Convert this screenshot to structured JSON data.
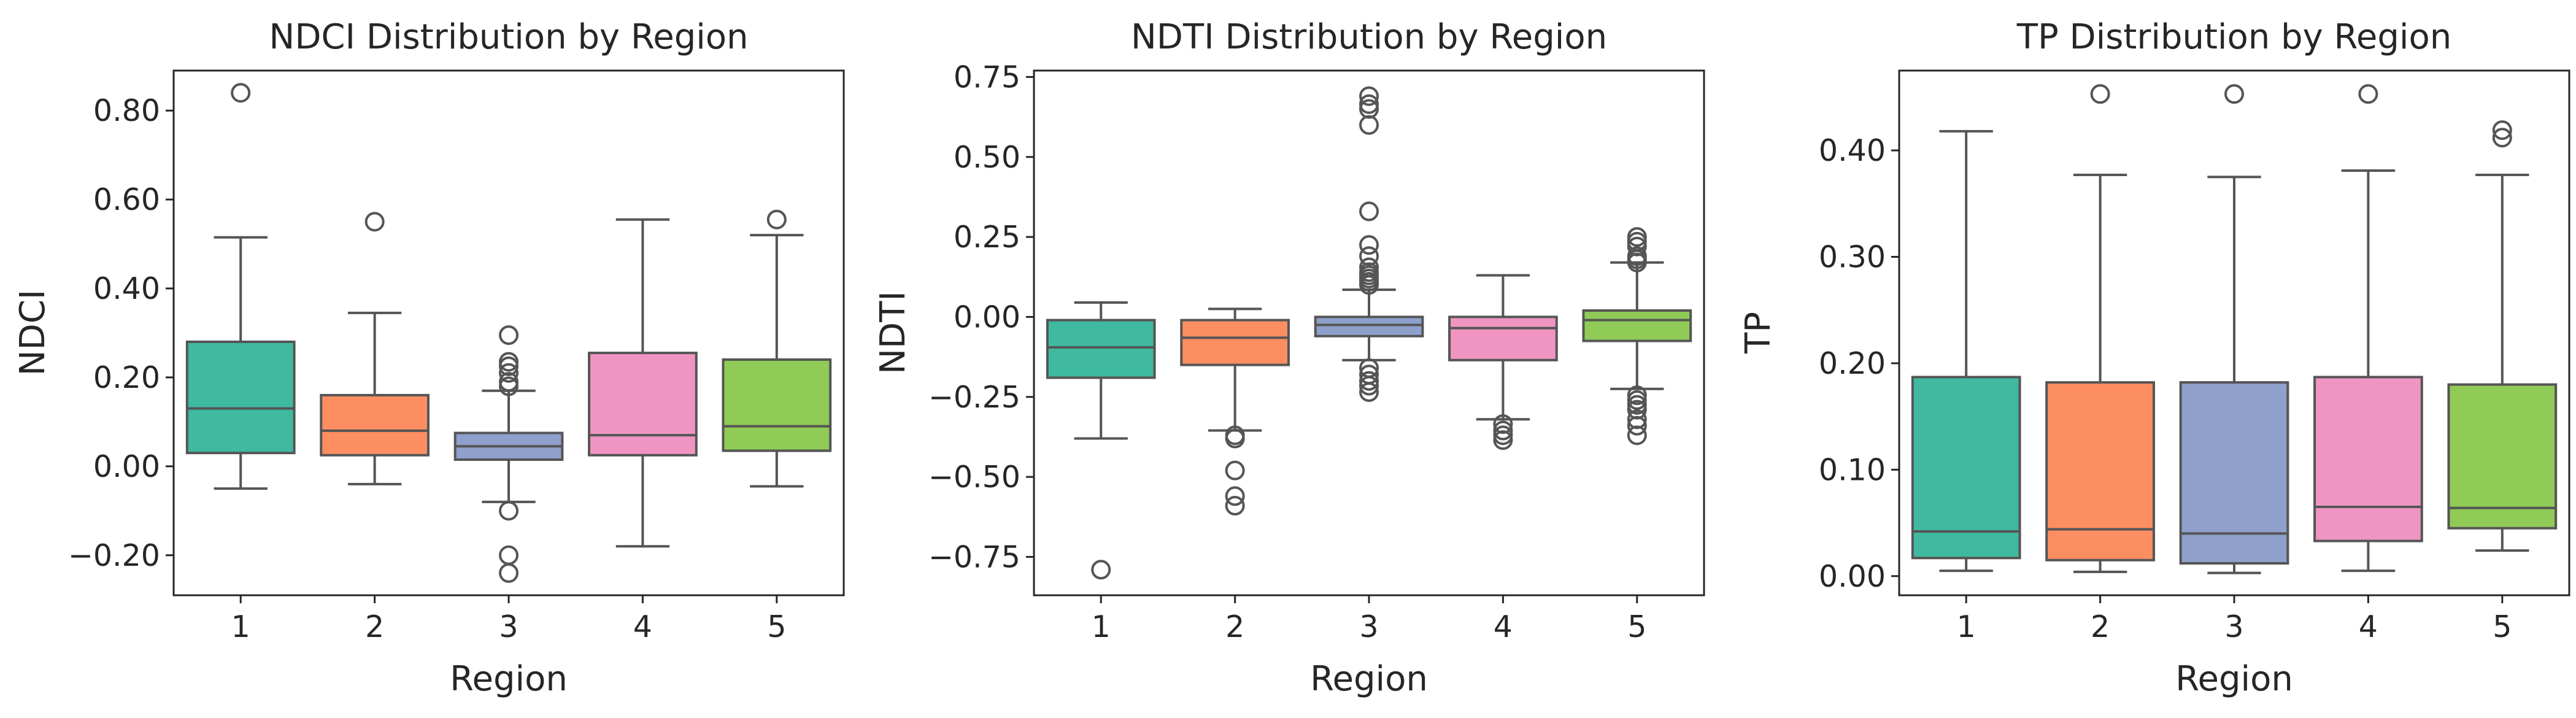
{
  "chart_data": [
    {
      "type": "boxplot",
      "title": "NDCI Distribution by Region",
      "xlabel": "Region",
      "ylabel": "NDCI",
      "ylim": [
        -0.29,
        0.89
      ],
      "yticks": [
        -0.2,
        0.0,
        0.2,
        0.4,
        0.6,
        0.8
      ],
      "ytick_labels": [
        "−0.20",
        "0.00",
        "0.20",
        "0.40",
        "0.60",
        "0.80"
      ],
      "categories": [
        "1",
        "2",
        "3",
        "4",
        "5"
      ],
      "colors": [
        "#3fb99f",
        "#fc8e62",
        "#8ea0cb",
        "#f095c2",
        "#8fcb56"
      ],
      "boxes": [
        {
          "region": "1",
          "whislo": -0.05,
          "q1": 0.03,
          "med": 0.13,
          "q3": 0.28,
          "whishi": 0.515,
          "fliers": [
            0.84
          ]
        },
        {
          "region": "2",
          "whislo": -0.04,
          "q1": 0.025,
          "med": 0.08,
          "q3": 0.16,
          "whishi": 0.345,
          "fliers": [
            0.55
          ]
        },
        {
          "region": "3",
          "whislo": -0.08,
          "q1": 0.015,
          "med": 0.045,
          "q3": 0.075,
          "whishi": 0.17,
          "fliers": [
            0.295,
            0.235,
            0.225,
            0.21,
            0.19,
            0.18,
            -0.1,
            -0.2,
            -0.24
          ]
        },
        {
          "region": "4",
          "whislo": -0.18,
          "q1": 0.025,
          "med": 0.07,
          "q3": 0.255,
          "whishi": 0.555,
          "fliers": []
        },
        {
          "region": "5",
          "whislo": -0.045,
          "q1": 0.035,
          "med": 0.09,
          "q3": 0.24,
          "whishi": 0.52,
          "fliers": [
            0.555
          ]
        }
      ]
    },
    {
      "type": "boxplot",
      "title": "NDTI Distribution by Region",
      "xlabel": "Region",
      "ylabel": "NDTI",
      "ylim": [
        -0.87,
        0.77
      ],
      "yticks": [
        -0.75,
        -0.5,
        -0.25,
        0.0,
        0.25,
        0.5,
        0.75
      ],
      "ytick_labels": [
        "−0.75",
        "−0.50",
        "−0.25",
        "0.00",
        "0.25",
        "0.50",
        "0.75"
      ],
      "categories": [
        "1",
        "2",
        "3",
        "4",
        "5"
      ],
      "colors": [
        "#3fb99f",
        "#fc8e62",
        "#8ea0cb",
        "#f095c2",
        "#8fcb56"
      ],
      "boxes": [
        {
          "region": "1",
          "whislo": -0.38,
          "q1": -0.19,
          "med": -0.095,
          "q3": -0.01,
          "whishi": 0.045,
          "fliers": [
            -0.79
          ]
        },
        {
          "region": "2",
          "whislo": -0.355,
          "q1": -0.15,
          "med": -0.065,
          "q3": -0.01,
          "whishi": 0.025,
          "fliers": [
            -0.37,
            -0.38,
            -0.48,
            -0.56,
            -0.59
          ]
        },
        {
          "region": "3",
          "whislo": -0.135,
          "q1": -0.06,
          "med": -0.025,
          "q3": 0.0,
          "whishi": 0.085,
          "fliers": [
            0.69,
            0.665,
            0.65,
            0.6,
            0.33,
            0.225,
            0.19,
            0.155,
            0.14,
            0.13,
            0.12,
            0.11,
            0.1,
            -0.16,
            -0.18,
            -0.2,
            -0.215,
            -0.235
          ]
        },
        {
          "region": "4",
          "whislo": -0.32,
          "q1": -0.135,
          "med": -0.035,
          "q3": 0.0,
          "whishi": 0.13,
          "fliers": [
            -0.335,
            -0.355,
            -0.37,
            -0.385
          ]
        },
        {
          "region": "5",
          "whislo": -0.225,
          "q1": -0.075,
          "med": -0.01,
          "q3": 0.02,
          "whishi": 0.17,
          "fliers": [
            0.25,
            0.235,
            0.22,
            0.19,
            0.18,
            0.17,
            -0.245,
            -0.26,
            -0.275,
            -0.29,
            -0.32,
            -0.34,
            -0.37
          ]
        }
      ]
    },
    {
      "type": "boxplot",
      "title": "TP Distribution by Region",
      "xlabel": "Region",
      "ylabel": "TP",
      "ylim": [
        -0.018,
        0.475
      ],
      "yticks": [
        0.0,
        0.1,
        0.2,
        0.3,
        0.4
      ],
      "ytick_labels": [
        "0.00",
        "0.10",
        "0.20",
        "0.30",
        "0.40"
      ],
      "categories": [
        "1",
        "2",
        "3",
        "4",
        "5"
      ],
      "colors": [
        "#3fb99f",
        "#fc8e62",
        "#8ea0cb",
        "#f095c2",
        "#8fcb56"
      ],
      "boxes": [
        {
          "region": "1",
          "whislo": 0.005,
          "q1": 0.017,
          "med": 0.042,
          "q3": 0.187,
          "whishi": 0.418,
          "fliers": []
        },
        {
          "region": "2",
          "whislo": 0.004,
          "q1": 0.015,
          "med": 0.044,
          "q3": 0.182,
          "whishi": 0.377,
          "fliers": [
            0.453
          ]
        },
        {
          "region": "3",
          "whislo": 0.003,
          "q1": 0.012,
          "med": 0.04,
          "q3": 0.182,
          "whishi": 0.375,
          "fliers": [
            0.453
          ]
        },
        {
          "region": "4",
          "whislo": 0.005,
          "q1": 0.033,
          "med": 0.065,
          "q3": 0.187,
          "whishi": 0.381,
          "fliers": [
            0.453
          ]
        },
        {
          "region": "5",
          "whislo": 0.024,
          "q1": 0.045,
          "med": 0.064,
          "q3": 0.18,
          "whishi": 0.377,
          "fliers": [
            0.419,
            0.412
          ]
        }
      ]
    }
  ]
}
